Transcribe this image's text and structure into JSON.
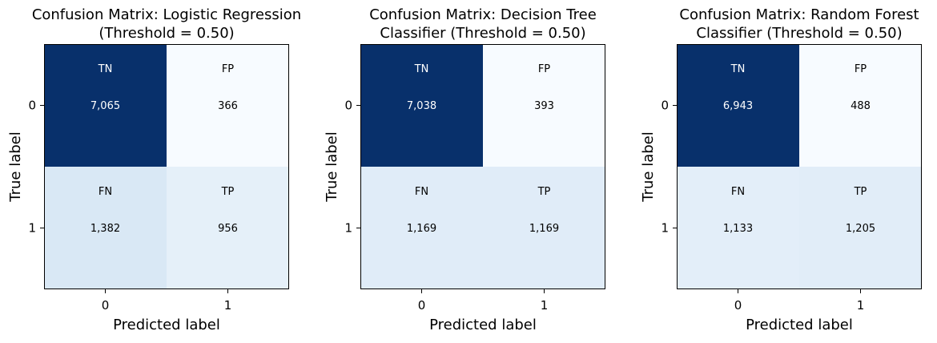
{
  "colors": {
    "cmap_low": "#f7fbff",
    "cmap_high": "#08306b",
    "text_dark": "#000000",
    "text_light": "#ffffff"
  },
  "chart_data": [
    {
      "type": "heatmap",
      "title_lines": [
        "Confusion Matrix: Logistic Regression",
        "(Threshold = 0.50)"
      ],
      "xlabel": "Predicted label",
      "ylabel": "True label",
      "x_ticks": [
        "0",
        "1"
      ],
      "y_ticks": [
        "0",
        "1"
      ],
      "cells": [
        {
          "row": 0,
          "col": 0,
          "tag": "TN",
          "value": 7065,
          "display": "7,065"
        },
        {
          "row": 0,
          "col": 1,
          "tag": "FP",
          "value": 366,
          "display": "366"
        },
        {
          "row": 1,
          "col": 0,
          "tag": "FN",
          "value": 1382,
          "display": "1,382"
        },
        {
          "row": 1,
          "col": 1,
          "tag": "TP",
          "value": 956,
          "display": "956"
        }
      ]
    },
    {
      "type": "heatmap",
      "title_lines": [
        "Confusion Matrix: Decision Tree",
        "Classifier (Threshold = 0.50)"
      ],
      "xlabel": "Predicted label",
      "ylabel": "True label",
      "x_ticks": [
        "0",
        "1"
      ],
      "y_ticks": [
        "0",
        "1"
      ],
      "cells": [
        {
          "row": 0,
          "col": 0,
          "tag": "TN",
          "value": 7038,
          "display": "7,038"
        },
        {
          "row": 0,
          "col": 1,
          "tag": "FP",
          "value": 393,
          "display": "393"
        },
        {
          "row": 1,
          "col": 0,
          "tag": "FN",
          "value": 1169,
          "display": "1,169"
        },
        {
          "row": 1,
          "col": 1,
          "tag": "TP",
          "value": 1169,
          "display": "1,169"
        }
      ]
    },
    {
      "type": "heatmap",
      "title_lines": [
        "Confusion Matrix: Random Forest",
        "Classifier (Threshold = 0.50)"
      ],
      "xlabel": "Predicted label",
      "ylabel": "True label",
      "x_ticks": [
        "0",
        "1"
      ],
      "y_ticks": [
        "0",
        "1"
      ],
      "cells": [
        {
          "row": 0,
          "col": 0,
          "tag": "TN",
          "value": 6943,
          "display": "6,943"
        },
        {
          "row": 0,
          "col": 1,
          "tag": "FP",
          "value": 488,
          "display": "488"
        },
        {
          "row": 1,
          "col": 0,
          "tag": "FN",
          "value": 1133,
          "display": "1,133"
        },
        {
          "row": 1,
          "col": 1,
          "tag": "TP",
          "value": 1205,
          "display": "1,205"
        }
      ]
    }
  ]
}
